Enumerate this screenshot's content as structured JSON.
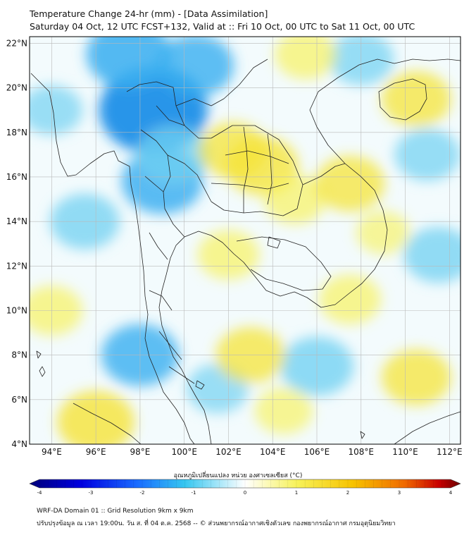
{
  "title": {
    "line1": "Temperature Change 24-hr (mm) - [Data Assimilation]",
    "line2": "Saturday 04 Oct, 12 UTC FCST+132, Valid at :: Fri 10 Oct, 00 UTC to Sat 11 Oct, 00 UTC"
  },
  "axes": {
    "lat_ticks": [
      "22°N",
      "20°N",
      "18°N",
      "16°N",
      "14°N",
      "12°N",
      "10°N",
      "8°N",
      "6°N",
      "4°N"
    ],
    "lon_ticks": [
      "94°E",
      "96°E",
      "98°E",
      "100°E",
      "102°E",
      "104°E",
      "106°E",
      "108°E",
      "110°E",
      "112°E"
    ],
    "lat_values": [
      22,
      20,
      18,
      16,
      14,
      12,
      10,
      8,
      6,
      4
    ],
    "lon_values": [
      94,
      96,
      98,
      100,
      102,
      104,
      106,
      108,
      110,
      112
    ],
    "lat_range": [
      4,
      22.3
    ],
    "lon_range": [
      93,
      112.5
    ]
  },
  "colorbar": {
    "label": "อุณหภูมิเปลี่ยนแปลง หน่วย องศาเซลเซียส (°C)",
    "ticks": [
      "-4",
      "-3",
      "-2",
      "-1",
      "0",
      "1",
      "2",
      "3",
      "4"
    ],
    "tick_values": [
      -4,
      -3,
      -2,
      -1,
      0,
      1,
      2,
      3,
      4
    ],
    "colors": [
      "#00007a",
      "#0000e0",
      "#1a6cff",
      "#35c6f0",
      "#ffffff",
      "#f7f25a",
      "#f7c300",
      "#f06a00",
      "#c80000",
      "#6b0000"
    ]
  },
  "footer": {
    "line1": "WRF-DA Domain 01 :: Grid Resolution 9km x 9km",
    "line2": "ปรับปรุงข้อมูล ณ เวลา 19:00น. วัน ส. ที่ 04 ต.ค. 2568 -- © ส่วนพยากรณ์อากาศเชิงตัวเลข กองพยากรณ์อากาศ กรมอุตุนิยมวิทยา"
  },
  "field_anomalies": [
    {
      "lon": 98.6,
      "lat": 19.0,
      "value": -1.8
    },
    {
      "lon": 97.5,
      "lat": 21.5,
      "value": -1.2
    },
    {
      "lon": 100.5,
      "lat": 21.0,
      "value": -1.0
    },
    {
      "lon": 99.0,
      "lat": 15.8,
      "value": -1.1
    },
    {
      "lon": 99.5,
      "lat": 17.0,
      "value": -0.9
    },
    {
      "lon": 95.5,
      "lat": 14.0,
      "value": -0.8
    },
    {
      "lon": 98.0,
      "lat": 8.0,
      "value": -1.0
    },
    {
      "lon": 106.0,
      "lat": 7.5,
      "value": -0.9
    },
    {
      "lon": 108.0,
      "lat": 21.3,
      "value": -0.7
    },
    {
      "lon": 111.0,
      "lat": 17.0,
      "value": -0.7
    },
    {
      "lon": 94.0,
      "lat": 19.0,
      "value": -0.6
    },
    {
      "lon": 111.5,
      "lat": 12.5,
      "value": -0.8
    },
    {
      "lon": 101.5,
      "lat": 6.5,
      "value": -0.6
    },
    {
      "lon": 103.5,
      "lat": 16.5,
      "value": 0.9
    },
    {
      "lon": 102.2,
      "lat": 17.2,
      "value": 0.8
    },
    {
      "lon": 105.0,
      "lat": 15.0,
      "value": 0.6
    },
    {
      "lon": 107.5,
      "lat": 15.7,
      "value": 0.8
    },
    {
      "lon": 110.5,
      "lat": 19.5,
      "value": 0.8
    },
    {
      "lon": 105.5,
      "lat": 21.5,
      "value": 0.6
    },
    {
      "lon": 96.0,
      "lat": 5.0,
      "value": 1.0
    },
    {
      "lon": 103.0,
      "lat": 8.0,
      "value": 0.8
    },
    {
      "lon": 102.0,
      "lat": 12.5,
      "value": 0.6
    },
    {
      "lon": 110.5,
      "lat": 7.0,
      "value": 0.8
    },
    {
      "lon": 107.5,
      "lat": 10.5,
      "value": 0.6
    },
    {
      "lon": 94.0,
      "lat": 10.0,
      "value": 0.6
    },
    {
      "lon": 104.5,
      "lat": 5.5,
      "value": 0.5
    },
    {
      "lon": 109.0,
      "lat": 13.5,
      "value": 0.4
    }
  ]
}
